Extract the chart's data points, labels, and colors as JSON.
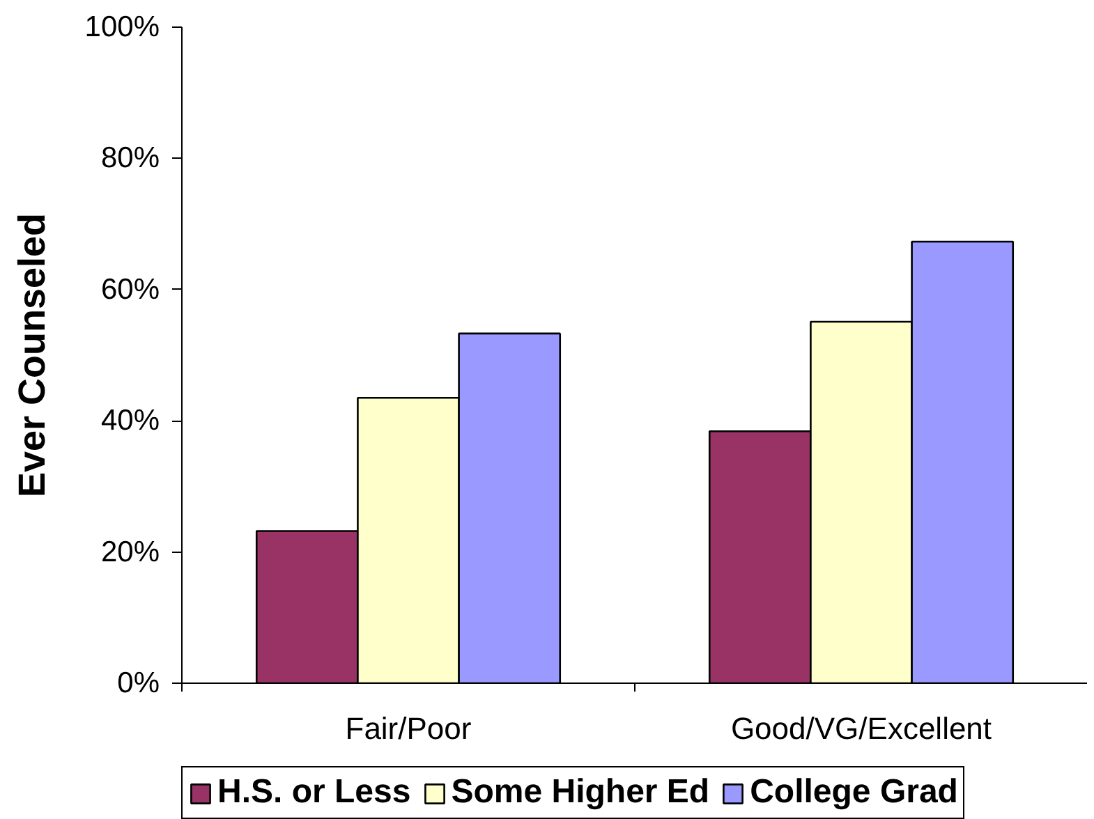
{
  "chart_data": {
    "type": "bar",
    "ylabel": "Ever Counseled",
    "categories": [
      "Fair/Poor",
      "Good/VG/Excellent"
    ],
    "series": [
      {
        "name": "H.S. or Less",
        "color": "#993366",
        "values": [
          23.2,
          38.4
        ]
      },
      {
        "name": "Some Higher Ed",
        "color": "#ffffcc",
        "values": [
          43.5,
          55.1
        ]
      },
      {
        "name": "College Grad",
        "color": "#9999ff",
        "values": [
          53.3,
          67.3
        ]
      }
    ],
    "ylim": [
      0,
      100
    ],
    "yticks": [
      {
        "value": 0,
        "label": "0%"
      },
      {
        "value": 20,
        "label": "20%"
      },
      {
        "value": 40,
        "label": "40%"
      },
      {
        "value": 60,
        "label": "60%"
      },
      {
        "value": 80,
        "label": "80%"
      },
      {
        "value": 100,
        "label": "100%"
      }
    ],
    "grid": false,
    "legend": "bottom"
  }
}
